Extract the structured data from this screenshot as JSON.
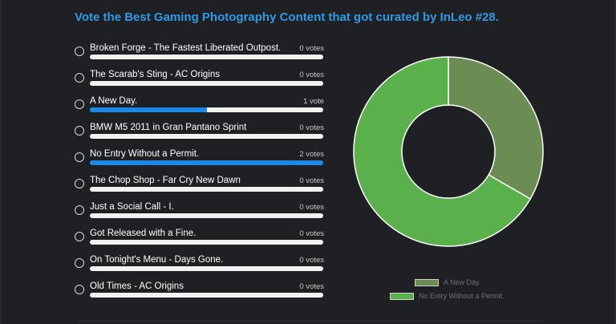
{
  "poll": {
    "title": "Vote the Best Gaming Photography Content that got curated by InLeo #28.",
    "max_votes": 2,
    "options": [
      {
        "label": "Broken Forge - The Fastest Liberated Outpost.",
        "votes": 0,
        "votes_label": "0 votes"
      },
      {
        "label": "The Scarab's Sting - AC Origins",
        "votes": 0,
        "votes_label": "0 votes"
      },
      {
        "label": "A New Day.",
        "votes": 1,
        "votes_label": "1 vote"
      },
      {
        "label": "BMW M5 2011 in Gran Pantano Sprint",
        "votes": 0,
        "votes_label": "0 votes"
      },
      {
        "label": "No Entry Without a Permit.",
        "votes": 2,
        "votes_label": "2 votes"
      },
      {
        "label": "The Chop Shop - Far Cry New Dawn",
        "votes": 0,
        "votes_label": "0 votes"
      },
      {
        "label": "Just a Social Call - I.",
        "votes": 0,
        "votes_label": "0 votes"
      },
      {
        "label": "Got Released with a Fine.",
        "votes": 0,
        "votes_label": "0 votes"
      },
      {
        "label": "On Tonight's Menu - Days Gone.",
        "votes": 0,
        "votes_label": "0 votes"
      },
      {
        "label": "Old Times - AC Origins",
        "votes": 0,
        "votes_label": "0 votes"
      }
    ]
  },
  "chart_data": {
    "type": "pie",
    "categories": [
      "A New Day.",
      "No Entry Without a Permit."
    ],
    "values": [
      1,
      2
    ],
    "colors": [
      "#6b8c52",
      "#5ab04a"
    ],
    "legend_position": "bottom"
  },
  "colors": {
    "accent": "#2e9ae6",
    "bar_fill": "#1e88e5",
    "bar_track": "#f2f2f2",
    "background": "#1e2023"
  }
}
